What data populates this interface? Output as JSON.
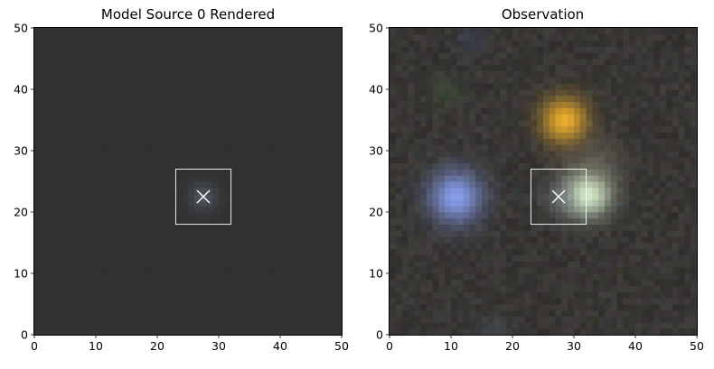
{
  "chart_data": [
    {
      "type": "heatmap",
      "title": "Model Source 0 Rendered",
      "xlim": [
        0,
        50
      ],
      "ylim": [
        0,
        50
      ],
      "xticks": [
        0,
        10,
        20,
        30,
        40,
        50
      ],
      "yticks": [
        0,
        10,
        20,
        30,
        40,
        50
      ],
      "background_color": "#313131",
      "sources": [
        {
          "x": 27.5,
          "y": 22.5,
          "sigma": 1.6,
          "color": "#7f97b0",
          "amp": 0.35
        }
      ],
      "markers": [
        {
          "x": 27.5,
          "y": 22.5,
          "symbol": "x",
          "color": "#ffffff"
        }
      ],
      "boxes": [
        {
          "x0": 23,
          "y0": 18,
          "x1": 32,
          "y1": 27,
          "color": "#ffffff"
        }
      ]
    },
    {
      "type": "heatmap",
      "title": "Observation",
      "xlim": [
        0,
        50
      ],
      "ylim": [
        0,
        50
      ],
      "xticks": [
        0,
        10,
        20,
        30,
        40,
        50
      ],
      "yticks": [
        0,
        10,
        20,
        30,
        40,
        50
      ],
      "background_color": "#383634",
      "sources": [
        {
          "x": 28.5,
          "y": 35.0,
          "sigma": 2.6,
          "color": "#ffba2a",
          "amp": 0.9
        },
        {
          "x": 10.8,
          "y": 22.5,
          "sigma": 3.0,
          "color": "#8fa8ff",
          "amp": 0.9
        },
        {
          "x": 32.3,
          "y": 23.0,
          "sigma": 2.6,
          "color": "#e3ffd9",
          "amp": 0.95
        },
        {
          "x": 33.5,
          "y": 28.0,
          "sigma": 3.0,
          "color": "#8c8470",
          "amp": 0.35
        },
        {
          "x": 28.0,
          "y": 22.5,
          "sigma": 2.2,
          "color": "#9aa2b8",
          "amp": 0.3
        },
        {
          "x": 9.5,
          "y": 39.5,
          "sigma": 1.8,
          "color": "#3d5a36",
          "amp": 0.45
        },
        {
          "x": 13.0,
          "y": 48.0,
          "sigma": 1.8,
          "color": "#3a4866",
          "amp": 0.4
        },
        {
          "x": 17.0,
          "y": 1.0,
          "sigma": 1.8,
          "color": "#4a5a62",
          "amp": 0.45
        }
      ],
      "markers": [
        {
          "x": 27.5,
          "y": 22.5,
          "symbol": "x",
          "color": "#ffffff"
        }
      ],
      "boxes": [
        {
          "x0": 23,
          "y0": 18,
          "x1": 32,
          "y1": 27,
          "color": "#ffffff"
        }
      ]
    }
  ]
}
